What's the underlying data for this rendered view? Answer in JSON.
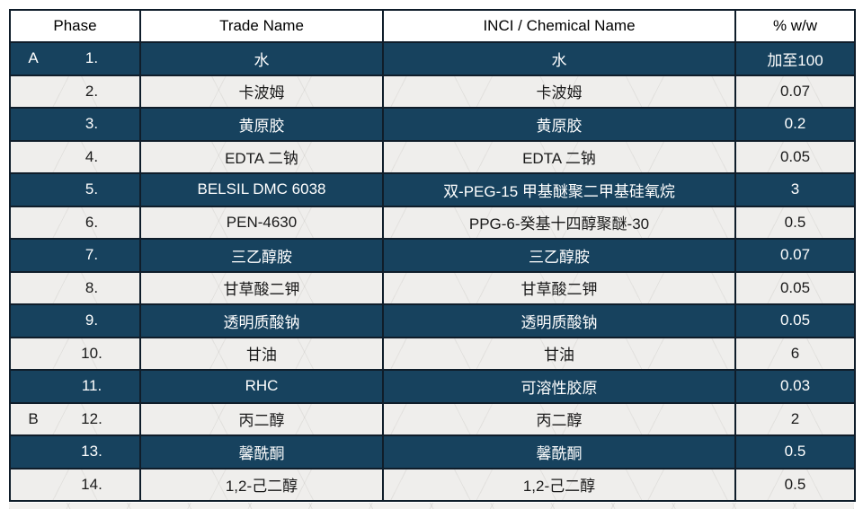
{
  "table": {
    "columns": [
      "Phase",
      "Trade Name",
      "INCI / Chemical Name",
      "% w/w"
    ],
    "rows": [
      {
        "phase": "A",
        "num": "1.",
        "trade": "水",
        "inci": "水",
        "pct": "加至100",
        "dark": true
      },
      {
        "num": "2.",
        "trade": "卡波姆",
        "inci": "卡波姆",
        "pct": "0.07",
        "dark": false
      },
      {
        "num": "3.",
        "trade": "黄原胶",
        "inci": "黄原胶",
        "pct": "0.2",
        "dark": true
      },
      {
        "num": "4.",
        "trade": "EDTA 二钠",
        "inci": "EDTA 二钠",
        "pct": "0.05",
        "dark": false
      },
      {
        "num": "5.",
        "trade": "BELSIL DMC 6038",
        "inci": "双-PEG-15 甲基醚聚二甲基硅氧烷",
        "pct": "3",
        "dark": true
      },
      {
        "num": "6.",
        "trade": "PEN-4630",
        "inci": "PPG-6-癸基十四醇聚醚-30",
        "pct": "0.5",
        "dark": false
      },
      {
        "num": "7.",
        "trade": "三乙醇胺",
        "inci": "三乙醇胺",
        "pct": "0.07",
        "dark": true
      },
      {
        "num": "8.",
        "trade": "甘草酸二钾",
        "inci": "甘草酸二钾",
        "pct": "0.05",
        "dark": false
      },
      {
        "num": "9.",
        "trade": "透明质酸钠",
        "inci": "透明质酸钠",
        "pct": "0.05",
        "dark": true
      },
      {
        "num": "10.",
        "trade": "甘油",
        "inci": "甘油",
        "pct": "6",
        "dark": false
      },
      {
        "num": "11.",
        "trade": "RHC",
        "inci": "可溶性胶原",
        "pct": "0.03",
        "dark": true
      },
      {
        "phase": "B",
        "num": "12.",
        "trade": "丙二醇",
        "inci": "丙二醇",
        "pct": "2",
        "dark": false
      },
      {
        "num": "13.",
        "trade": "馨酰酮",
        "inci": "馨酰酮",
        "pct": "0.5",
        "dark": true
      },
      {
        "num": "14.",
        "trade": "1,2-己二醇",
        "inci": "1,2-己二醇",
        "pct": "0.5",
        "dark": false
      }
    ]
  },
  "colors": {
    "dark_row": "#17425E",
    "light_row": "#EFEEEC",
    "border": "#0F1D2A",
    "header_bg": "#FFFFFF"
  }
}
